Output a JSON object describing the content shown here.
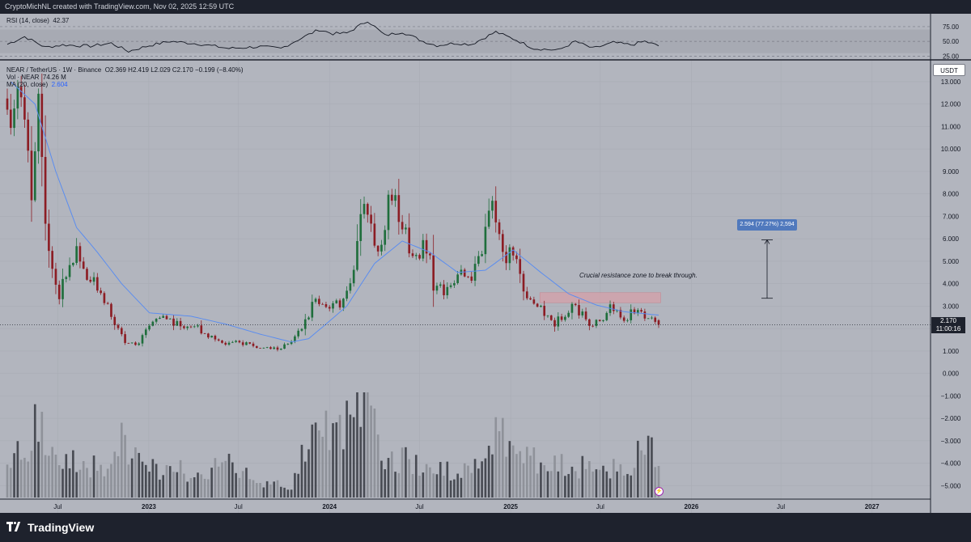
{
  "header": {
    "text": "CryptoMichNL created with TradingView.com, Nov 02, 2025 12:59 UTC"
  },
  "legends": {
    "rsi": {
      "name": "RSI (14, close)",
      "value": "42.37"
    },
    "main": {
      "symbol": "NEAR / TetherUS · 1W · Binance",
      "open": "O2.369",
      "high": "H2.419",
      "low": "L2.029",
      "close": "C2.170",
      "change": "−0.199 (−8.40%)"
    },
    "vol": {
      "name": "Vol · NEAR",
      "value": "74.26 M"
    },
    "ma": {
      "name": "MA (20, close)",
      "value": "2.604"
    }
  },
  "currency_label": "USDT",
  "current_price": {
    "value": "2.170",
    "countdown": "11:00:16"
  },
  "annotation": "Crucial resistance zone to break through.",
  "measure": {
    "label": "2.594 (77.27%) 2,594",
    "from": 3.35,
    "to": 5.95
  },
  "brand": "TradingView",
  "colors": {
    "up": "#1f6e3c",
    "down": "#8c1d24",
    "ma": "#5b8def",
    "zone": "#d4a0a8",
    "vol_up": "#3c3f47",
    "vol_down": "#8b8e96"
  },
  "chart_data": {
    "type": "candlestick",
    "y_axis": {
      "ticks": [
        "13.000",
        "12.000",
        "11.000",
        "10.000",
        "9.000",
        "8.000",
        "7.000",
        "6.000",
        "5.000",
        "4.000",
        "3.000",
        "2.000",
        "1.000",
        "0.000",
        "−1.000",
        "−2.000",
        "−3.000",
        "−4.000",
        "−5.000"
      ],
      "tick_values": [
        13,
        12,
        11,
        10,
        9,
        8,
        7,
        6,
        5,
        4,
        3,
        2,
        1,
        0,
        -1,
        -2,
        -3,
        -4,
        -5
      ],
      "range": [
        -5.6,
        13.9
      ]
    },
    "x_axis": {
      "ticks": [
        "Jul",
        "2023",
        "Jul",
        "2024",
        "Jul",
        "2025",
        "Jul",
        "2026",
        "Jul",
        "2027"
      ],
      "tick_dates": [
        "2022-07-01",
        "2023-01-01",
        "2023-07-01",
        "2024-01-01",
        "2024-07-01",
        "2025-01-01",
        "2025-07-01",
        "2026-01-01",
        "2026-07-01",
        "2027-01-01"
      ],
      "bold": [
        "2023",
        "2024",
        "2025",
        "2026",
        "2027"
      ]
    },
    "rsi_axis": {
      "ticks": [
        "75.00",
        "50.00",
        "25.00"
      ],
      "values": [
        75,
        50,
        25
      ],
      "band": [
        30,
        70
      ]
    },
    "resistance_zone": {
      "from_date": "2025-03-01",
      "to_date": "2025-10-31",
      "low": 3.15,
      "high": 3.6
    },
    "ma20_anchors": [
      [
        "2022-03-28",
        13.0
      ],
      [
        "2022-05-16",
        12.0
      ],
      [
        "2022-06-27",
        9.0
      ],
      [
        "2022-08-08",
        6.5
      ],
      [
        "2022-09-19",
        5.4
      ],
      [
        "2022-11-07",
        4.0
      ],
      [
        "2023-01-02",
        2.7
      ],
      [
        "2023-03-27",
        2.55
      ],
      [
        "2023-06-05",
        2.2
      ],
      [
        "2023-08-14",
        1.75
      ],
      [
        "2023-10-16",
        1.4
      ],
      [
        "2023-11-20",
        1.55
      ],
      [
        "2023-12-25",
        2.2
      ],
      [
        "2024-02-05",
        3.0
      ],
      [
        "2024-04-01",
        4.9
      ],
      [
        "2024-05-27",
        5.9
      ],
      [
        "2024-07-22",
        5.4
      ],
      [
        "2024-09-16",
        4.5
      ],
      [
        "2024-11-11",
        4.6
      ],
      [
        "2025-01-06",
        5.5
      ],
      [
        "2025-03-03",
        4.5
      ],
      [
        "2025-04-28",
        3.55
      ],
      [
        "2025-06-23",
        3.05
      ],
      [
        "2025-08-18",
        2.75
      ],
      [
        "2025-10-27",
        2.6
      ]
    ],
    "ohlc_anchors": [
      [
        "2022-03-21",
        12.5
      ],
      [
        "2022-04-04",
        11.0
      ],
      [
        "2022-04-18",
        13.8
      ],
      [
        "2022-05-02",
        11.6
      ],
      [
        "2022-05-16",
        8.3
      ],
      [
        "2022-05-30",
        11.8
      ],
      [
        "2022-06-13",
        6.8
      ],
      [
        "2022-06-27",
        4.8
      ],
      [
        "2022-07-11",
        3.4
      ],
      [
        "2022-07-25",
        4.6
      ],
      [
        "2022-08-15",
        5.4
      ],
      [
        "2022-09-05",
        4.2
      ],
      [
        "2022-09-26",
        4.0
      ],
      [
        "2022-10-17",
        3.1
      ],
      [
        "2022-11-07",
        1.9
      ],
      [
        "2022-11-21",
        1.45
      ],
      [
        "2022-12-19",
        1.35
      ],
      [
        "2023-01-16",
        2.35
      ],
      [
        "2023-02-13",
        2.5
      ],
      [
        "2023-03-13",
        2.1
      ],
      [
        "2023-04-10",
        2.15
      ],
      [
        "2023-05-08",
        1.7
      ],
      [
        "2023-06-12",
        1.35
      ],
      [
        "2023-07-24",
        1.35
      ],
      [
        "2023-08-21",
        1.12
      ],
      [
        "2023-09-25",
        1.1
      ],
      [
        "2023-10-23",
        1.35
      ],
      [
        "2023-11-13",
        2.0
      ],
      [
        "2023-12-11",
        3.3
      ],
      [
        "2024-01-08",
        3.0
      ],
      [
        "2024-02-05",
        3.1
      ],
      [
        "2024-03-04",
        5.5
      ],
      [
        "2024-03-18",
        7.9
      ],
      [
        "2024-04-15",
        5.3
      ],
      [
        "2024-05-06",
        7.5
      ],
      [
        "2024-05-27",
        7.3
      ],
      [
        "2024-06-24",
        5.2
      ],
      [
        "2024-07-22",
        5.8
      ],
      [
        "2024-08-05",
        4.0
      ],
      [
        "2024-09-02",
        3.6
      ],
      [
        "2024-09-30",
        4.9
      ],
      [
        "2024-10-21",
        4.0
      ],
      [
        "2024-11-11",
        5.6
      ],
      [
        "2024-12-02",
        7.6
      ],
      [
        "2024-12-23",
        5.1
      ],
      [
        "2025-01-13",
        5.6
      ],
      [
        "2025-02-03",
        3.8
      ],
      [
        "2025-03-10",
        2.8
      ],
      [
        "2025-04-07",
        2.2
      ],
      [
        "2025-05-12",
        3.1
      ],
      [
        "2025-06-16",
        2.3
      ],
      [
        "2025-07-07",
        2.2
      ],
      [
        "2025-07-28",
        3.0
      ],
      [
        "2025-08-25",
        2.4
      ],
      [
        "2025-09-22",
        2.9
      ],
      [
        "2025-10-27",
        2.17
      ]
    ],
    "last_candle": {
      "date": "2025-10-27",
      "open": 2.369,
      "high": 2.419,
      "low": 2.029,
      "close": 2.17
    },
    "rsi_anchors": [
      [
        "2022-03-21",
        45
      ],
      [
        "2022-04-25",
        58
      ],
      [
        "2022-06-06",
        40
      ],
      [
        "2022-07-11",
        44
      ],
      [
        "2022-09-05",
        42
      ],
      [
        "2022-10-17",
        47
      ],
      [
        "2022-11-21",
        33
      ],
      [
        "2023-01-02",
        43
      ],
      [
        "2023-02-13",
        50
      ],
      [
        "2023-04-10",
        46
      ],
      [
        "2023-06-12",
        38
      ],
      [
        "2023-08-14",
        41
      ],
      [
        "2023-09-25",
        38
      ],
      [
        "2023-11-06",
        56
      ],
      [
        "2023-12-11",
        70
      ],
      [
        "2024-01-08",
        63
      ],
      [
        "2024-02-05",
        64
      ],
      [
        "2024-03-18",
        85
      ],
      [
        "2024-04-22",
        60
      ],
      [
        "2024-05-27",
        66
      ],
      [
        "2024-07-08",
        50
      ],
      [
        "2024-08-05",
        43
      ],
      [
        "2024-09-09",
        47
      ],
      [
        "2024-10-14",
        45
      ],
      [
        "2024-12-02",
        66
      ],
      [
        "2025-01-13",
        52
      ],
      [
        "2025-02-17",
        38
      ],
      [
        "2025-04-07",
        35
      ],
      [
        "2025-05-12",
        50
      ],
      [
        "2025-06-16",
        38
      ],
      [
        "2025-07-28",
        48
      ],
      [
        "2025-09-01",
        44
      ],
      [
        "2025-09-29",
        50
      ],
      [
        "2025-10-27",
        42.37
      ]
    ],
    "volume_anchors": [
      [
        "2022-03-21",
        0.35
      ],
      [
        "2022-05-02",
        0.55
      ],
      [
        "2022-05-16",
        0.75
      ],
      [
        "2022-06-13",
        0.45
      ],
      [
        "2022-07-11",
        0.3
      ],
      [
        "2022-08-22",
        0.35
      ],
      [
        "2022-10-03",
        0.25
      ],
      [
        "2022-11-07",
        0.55
      ],
      [
        "2022-11-21",
        0.48
      ],
      [
        "2022-12-26",
        0.25
      ],
      [
        "2023-02-13",
        0.3
      ],
      [
        "2023-04-10",
        0.22
      ],
      [
        "2023-06-12",
        0.32
      ],
      [
        "2023-08-14",
        0.15
      ],
      [
        "2023-10-16",
        0.1
      ],
      [
        "2023-11-20",
        0.55
      ],
      [
        "2023-12-11",
        0.8
      ],
      [
        "2024-01-15",
        0.55
      ],
      [
        "2024-03-11",
        0.9
      ],
      [
        "2024-04-15",
        0.45
      ],
      [
        "2024-06-03",
        0.35
      ],
      [
        "2024-08-05",
        0.28
      ],
      [
        "2024-10-07",
        0.25
      ],
      [
        "2024-12-02",
        0.65
      ],
      [
        "2025-01-13",
        0.4
      ],
      [
        "2025-03-10",
        0.35
      ],
      [
        "2025-05-12",
        0.3
      ],
      [
        "2025-07-14",
        0.25
      ],
      [
        "2025-09-01",
        0.3
      ],
      [
        "2025-10-06",
        0.55
      ],
      [
        "2025-10-27",
        0.3
      ]
    ]
  }
}
